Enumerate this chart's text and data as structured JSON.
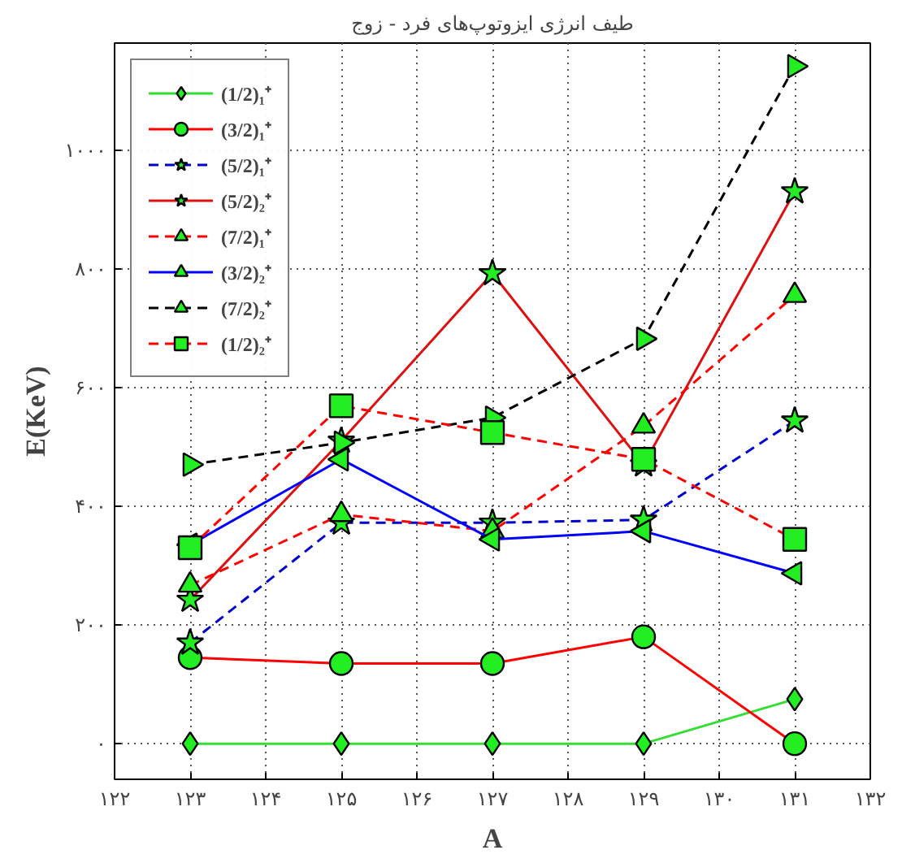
{
  "chart_data": {
    "type": "line",
    "title": "طیف انرژی ایزوتوپ‌های فرد - زوج",
    "xlabel": "A",
    "ylabel": "E(KeV)",
    "x": [
      123,
      125,
      127,
      129,
      131
    ],
    "xlim": [
      122,
      132
    ],
    "ylim": [
      -60,
      1180
    ],
    "xticks": [
      {
        "value": 122,
        "label": "۱۲۲"
      },
      {
        "value": 123,
        "label": "۱۲۳"
      },
      {
        "value": 124,
        "label": "۱۲۴"
      },
      {
        "value": 125,
        "label": "۱۲۵"
      },
      {
        "value": 126,
        "label": "۱۲۶"
      },
      {
        "value": 127,
        "label": "۱۲۷"
      },
      {
        "value": 128,
        "label": "۱۲۸"
      },
      {
        "value": 129,
        "label": "۱۲۹"
      },
      {
        "value": 130,
        "label": "۱۳۰"
      },
      {
        "value": 131,
        "label": "۱۳۱"
      },
      {
        "value": 132,
        "label": "۱۳۲"
      }
    ],
    "yticks": [
      {
        "value": 0,
        "label": "۰"
      },
      {
        "value": 200,
        "label": "۲۰۰"
      },
      {
        "value": 400,
        "label": "۴۰۰"
      },
      {
        "value": 600,
        "label": "۶۰۰"
      },
      {
        "value": 800,
        "label": "۸۰۰"
      },
      {
        "value": 1000,
        "label": "۱۰۰۰"
      }
    ],
    "grid": true,
    "legend": "top left",
    "series": [
      {
        "name": "(1/2)₁⁺",
        "color": "#33dd33",
        "marker": "diamond",
        "line_style": "solid",
        "values": [
          0,
          0,
          0,
          0,
          75
        ]
      },
      {
        "name": "(3/2)₁⁺",
        "color": "#ff0000",
        "marker": "circle",
        "line_style": "solid",
        "values": [
          145,
          135,
          135,
          180,
          0
        ]
      },
      {
        "name": "(5/2)₁⁺",
        "color": "#0000cc",
        "marker": "star",
        "line_style": "dashed",
        "values": [
          170,
          372,
          372,
          377,
          544
        ]
      },
      {
        "name": "(5/2)₂⁺",
        "color": "#dd1111",
        "marker": "star",
        "line_style": "solid",
        "values": [
          242,
          510,
          792,
          470,
          930
        ]
      },
      {
        "name": "(7/2)₁⁺",
        "color": "#ff0000",
        "marker": "triangle",
        "line_style": "dashed",
        "values": [
          267,
          386,
          358,
          535,
          755
        ]
      },
      {
        "name": "(3/2)₂⁺",
        "color": "#0000ff",
        "marker": "triangle-left",
        "line_style": "solid",
        "values": [
          335,
          479,
          344,
          358,
          287
        ]
      },
      {
        "name": "(7/2)₂⁺",
        "color": "#000000",
        "marker": "triangle-right",
        "line_style": "dashed",
        "values": [
          470,
          507,
          549,
          682,
          1141
        ]
      },
      {
        "name": "(1/2)₂⁺",
        "color": "#ff0000",
        "marker": "square",
        "line_style": "dashed",
        "values": [
          330,
          569,
          524,
          479,
          344
        ]
      }
    ]
  }
}
